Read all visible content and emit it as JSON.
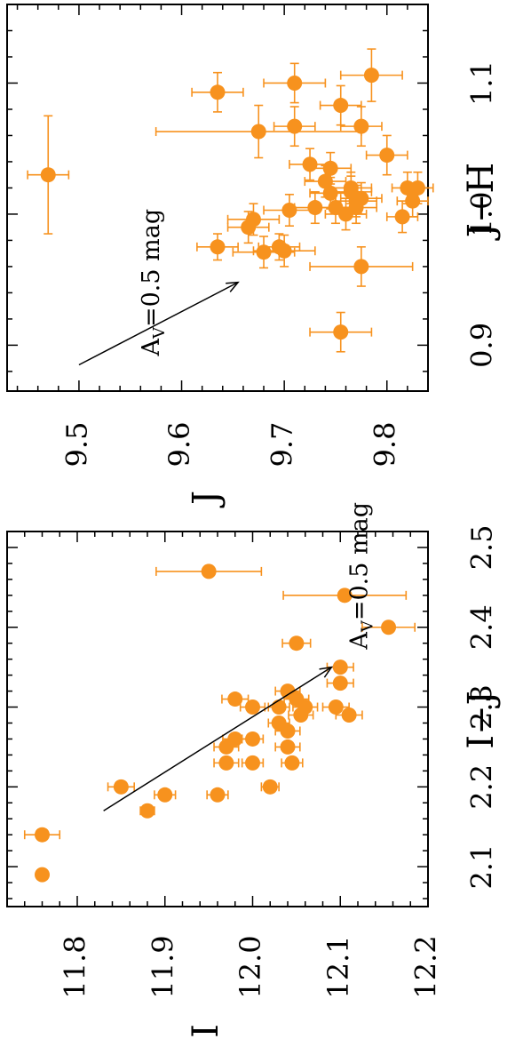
{
  "colors": {
    "marker": "#F7921E",
    "axis": "#000000",
    "background": "#FFFFFF"
  },
  "chart_data": [
    {
      "type": "scatter",
      "orientation": "rotated-90-ccw",
      "xlabel": "I−J",
      "ylabel": "I",
      "xlim": [
        2.05,
        2.52
      ],
      "ylim": [
        12.2,
        11.72
      ],
      "y_inverted": true,
      "xticks": [
        "2.1",
        "2.2",
        "2.3",
        "2.4",
        "2.5"
      ],
      "yticks": [
        "11.8",
        "11.9",
        "12.0",
        "12.1",
        "12.2"
      ],
      "annotation": {
        "text": "A",
        "subscript": "V",
        "suffix": "=0.5 mag",
        "arrow_from": [
          2.17,
          11.83
        ],
        "arrow_to": [
          2.35,
          12.09
        ]
      },
      "points": [
        {
          "x": 2.09,
          "y": 11.76,
          "yerr": 0.002
        },
        {
          "x": 2.14,
          "y": 11.76,
          "yerr": 0.02
        },
        {
          "x": 2.2,
          "y": 11.85,
          "yerr": 0.015
        },
        {
          "x": 2.17,
          "y": 11.88,
          "yerr": 0.008
        },
        {
          "x": 2.19,
          "y": 11.9,
          "yerr": 0.012
        },
        {
          "x": 2.19,
          "y": 11.96,
          "yerr": 0.012
        },
        {
          "x": 2.23,
          "y": 11.97,
          "yerr": 0.014
        },
        {
          "x": 2.25,
          "y": 11.97,
          "yerr": 0.014
        },
        {
          "x": 2.26,
          "y": 11.98,
          "yerr": 0.014
        },
        {
          "x": 2.31,
          "y": 11.98,
          "yerr": 0.015
        },
        {
          "x": 2.23,
          "y": 12.0,
          "yerr": 0.012
        },
        {
          "x": 2.26,
          "y": 12.0,
          "yerr": 0.012
        },
        {
          "x": 2.3,
          "y": 12.0,
          "yerr": 0.014
        },
        {
          "x": 2.2,
          "y": 12.02,
          "yerr": 0.01
        },
        {
          "x": 2.28,
          "y": 12.03,
          "yerr": 0.012
        },
        {
          "x": 2.3,
          "y": 12.03,
          "yerr": 0.012
        },
        {
          "x": 2.25,
          "y": 12.04,
          "yerr": 0.014
        },
        {
          "x": 2.27,
          "y": 12.04,
          "yerr": 0.014
        },
        {
          "x": 2.32,
          "y": 12.04,
          "yerr": 0.014
        },
        {
          "x": 2.23,
          "y": 12.045,
          "yerr": 0.012
        },
        {
          "x": 2.38,
          "y": 12.05,
          "yerr": 0.016
        },
        {
          "x": 2.31,
          "y": 12.05,
          "yerr": 0.014
        },
        {
          "x": 2.29,
          "y": 12.055,
          "yerr": 0.014
        },
        {
          "x": 2.3,
          "y": 12.06,
          "yerr": 0.014
        },
        {
          "x": 2.3,
          "y": 12.095,
          "yerr": 0.015
        },
        {
          "x": 2.33,
          "y": 12.1,
          "yerr": 0.015
        },
        {
          "x": 2.35,
          "y": 12.1,
          "yerr": 0.015
        },
        {
          "x": 2.29,
          "y": 12.11,
          "yerr": 0.015
        },
        {
          "x": 2.44,
          "y": 12.105,
          "yerr": 0.07
        },
        {
          "x": 2.4,
          "y": 12.155,
          "yerr": 0.03
        },
        {
          "x": 2.47,
          "y": 11.95,
          "yerr": 0.06
        }
      ]
    },
    {
      "type": "scatter",
      "orientation": "rotated-90-ccw",
      "xlabel": "J−H",
      "ylabel": "J",
      "xlim": [
        0.865,
        1.16
      ],
      "ylim": [
        9.84,
        9.43
      ],
      "y_inverted": true,
      "xticks": [
        "0.9",
        "1.0",
        "1.1"
      ],
      "yticks": [
        "9.5",
        "9.6",
        "9.7",
        "9.8"
      ],
      "annotation": {
        "text": "A",
        "subscript": "V",
        "suffix": "=0.5 mag",
        "arrow_from": [
          0.885,
          9.5
        ],
        "arrow_to": [
          0.948,
          9.655
        ]
      },
      "points": [
        {
          "x": 1.03,
          "y": 9.47,
          "xerr": 0.045,
          "yerr": 0.02
        },
        {
          "x": 1.093,
          "y": 9.635,
          "xerr": 0.015,
          "yerr": 0.025
        },
        {
          "x": 1.063,
          "y": 9.675,
          "xerr": 0.02,
          "yerr": 0.1
        },
        {
          "x": 1.1,
          "y": 9.71,
          "xerr": 0.015,
          "yerr": 0.03
        },
        {
          "x": 1.067,
          "y": 9.71,
          "xerr": 0.015,
          "yerr": 0.02
        },
        {
          "x": 0.975,
          "y": 9.635,
          "xerr": 0.01,
          "yerr": 0.02
        },
        {
          "x": 0.99,
          "y": 9.665,
          "xerr": 0.012,
          "yerr": 0.02
        },
        {
          "x": 0.975,
          "y": 9.695,
          "xerr": 0.01,
          "yerr": 0.02
        },
        {
          "x": 0.971,
          "y": 9.68,
          "xerr": 0.012,
          "yerr": 0.03
        },
        {
          "x": 0.972,
          "y": 9.7,
          "xerr": 0.012,
          "yerr": 0.03
        },
        {
          "x": 0.996,
          "y": 9.67,
          "xerr": 0.012,
          "yerr": 0.025
        },
        {
          "x": 1.003,
          "y": 9.705,
          "xerr": 0.012,
          "yerr": 0.025
        },
        {
          "x": 1.038,
          "y": 9.725,
          "xerr": 0.012,
          "yerr": 0.02
        },
        {
          "x": 1.035,
          "y": 9.745,
          "xerr": 0.012,
          "yerr": 0.02
        },
        {
          "x": 1.025,
          "y": 9.74,
          "xerr": 0.012,
          "yerr": 0.02
        },
        {
          "x": 1.016,
          "y": 9.745,
          "xerr": 0.012,
          "yerr": 0.02
        },
        {
          "x": 1.005,
          "y": 9.73,
          "xerr": 0.012,
          "yerr": 0.02
        },
        {
          "x": 1.005,
          "y": 9.75,
          "xerr": 0.012,
          "yerr": 0.02
        },
        {
          "x": 1.017,
          "y": 9.765,
          "xerr": 0.012,
          "yerr": 0.02
        },
        {
          "x": 1.0,
          "y": 9.76,
          "xerr": 0.012,
          "yerr": 0.02
        },
        {
          "x": 1.083,
          "y": 9.755,
          "xerr": 0.015,
          "yerr": 0.02
        },
        {
          "x": 1.067,
          "y": 9.775,
          "xerr": 0.015,
          "yerr": 0.02
        },
        {
          "x": 1.045,
          "y": 9.8,
          "xerr": 0.015,
          "yerr": 0.02
        },
        {
          "x": 1.106,
          "y": 9.785,
          "xerr": 0.02,
          "yerr": 0.03
        },
        {
          "x": 1.02,
          "y": 9.765,
          "xerr": 0.012,
          "yerr": 0.02
        },
        {
          "x": 1.012,
          "y": 9.775,
          "xerr": 0.012,
          "yerr": 0.02
        },
        {
          "x": 1.01,
          "y": 9.77,
          "xerr": 0.012,
          "yerr": 0.02
        },
        {
          "x": 1.005,
          "y": 9.77,
          "xerr": 0.012,
          "yerr": 0.02
        },
        {
          "x": 1.02,
          "y": 9.82,
          "xerr": 0.012,
          "yerr": 0.015
        },
        {
          "x": 1.01,
          "y": 9.825,
          "xerr": 0.012,
          "yerr": 0.015
        },
        {
          "x": 0.998,
          "y": 9.815,
          "xerr": 0.012,
          "yerr": 0.015
        },
        {
          "x": 1.02,
          "y": 9.83,
          "xerr": 0.012,
          "yerr": 0.015
        },
        {
          "x": 0.96,
          "y": 9.775,
          "xerr": 0.015,
          "yerr": 0.05
        },
        {
          "x": 0.91,
          "y": 9.755,
          "xerr": 0.015,
          "yerr": 0.03
        }
      ]
    }
  ]
}
